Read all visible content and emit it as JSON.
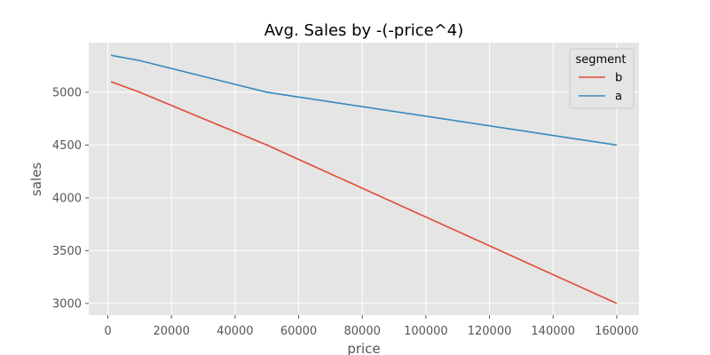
{
  "chart_data": {
    "type": "line",
    "title": "Avg. Sales by -(-price^4)",
    "xlabel": "price",
    "ylabel": "sales",
    "xlim": [
      -6000,
      167000
    ],
    "ylim": [
      2890,
      5470
    ],
    "x_ticks": [
      0,
      20000,
      40000,
      60000,
      80000,
      100000,
      120000,
      140000,
      160000
    ],
    "y_ticks": [
      3000,
      3500,
      4000,
      4500,
      5000
    ],
    "grid": true,
    "legend": {
      "title": "segment",
      "position": "top-right"
    },
    "series": [
      {
        "name": "b",
        "color": "#E24A33",
        "x": [
          1000,
          10000,
          50000,
          160000
        ],
        "y": [
          5100,
          5000,
          4500,
          3000
        ]
      },
      {
        "name": "a",
        "color": "#348ABD",
        "x": [
          1000,
          10000,
          50000,
          160000
        ],
        "y": [
          5350,
          5300,
          5000,
          4500
        ]
      }
    ]
  }
}
